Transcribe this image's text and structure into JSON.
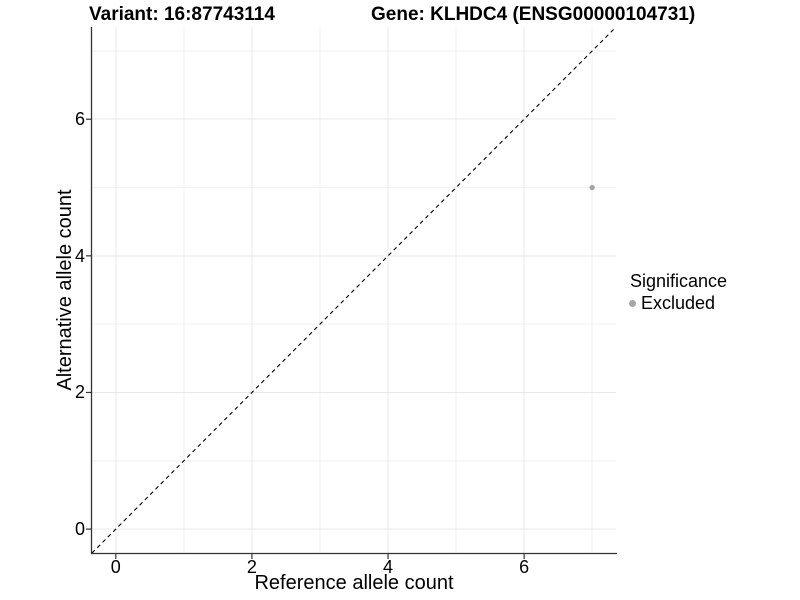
{
  "chart_data": {
    "type": "scatter",
    "title_left": "Variant: 16:87743114",
    "title_right": "Gene: KLHDC4 (ENSG00000104731)",
    "xlabel": "Reference allele count",
    "ylabel": "Alternative allele count",
    "xlim": [
      -0.35,
      7.35
    ],
    "ylim": [
      -0.35,
      7.35
    ],
    "x_ticks": [
      0,
      2,
      4,
      6
    ],
    "y_ticks": [
      0,
      2,
      4,
      6
    ],
    "x_minor_ticks": [
      1,
      3,
      5,
      7
    ],
    "y_minor_ticks": [
      1,
      3,
      5,
      7
    ],
    "grid": "on",
    "reference_line": {
      "kind": "identity y=x",
      "from": [
        -0.35,
        -0.35
      ],
      "to": [
        7.35,
        7.35
      ],
      "style": "dashed",
      "color": "#000000"
    },
    "series": [
      {
        "name": "Excluded",
        "color": "#a6a6a6",
        "marker": "circle",
        "points": [
          [
            7,
            5
          ]
        ]
      }
    ],
    "legend": {
      "title": "Significance",
      "position": "right",
      "items": [
        {
          "label": "Excluded",
          "color": "#a6a6a6",
          "marker": "circle"
        }
      ]
    },
    "colors": {
      "axis": "#333333",
      "grid_major": "#e8e8e8",
      "grid_minor": "#f1f1f1",
      "text": "#000000",
      "background": "#ffffff"
    }
  }
}
